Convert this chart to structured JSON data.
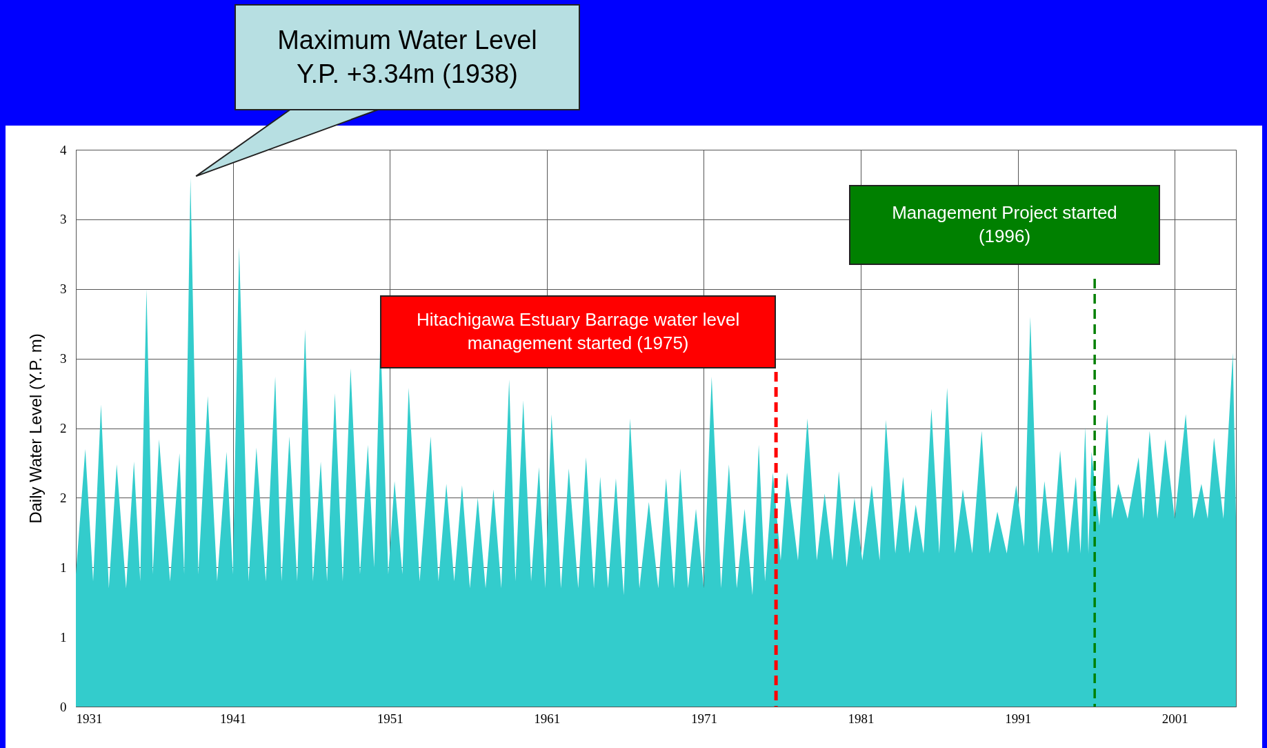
{
  "chart_data": {
    "type": "area",
    "ylabel": "Daily Water Level (Y.P. m)",
    "color": "#33cccc",
    "grid": true,
    "xlim": [
      1931,
      2004.9
    ],
    "xticks": [
      1931,
      1941,
      1951,
      1961,
      1971,
      1981,
      1991,
      2001
    ],
    "ylim": [
      0,
      4
    ],
    "yticks": [
      0,
      {
        "value": 0.5,
        "label": "1"
      },
      1,
      {
        "value": 1.5,
        "label": "2"
      },
      2,
      {
        "value": 2.5,
        "label": "3"
      },
      3,
      {
        "value": 3.5,
        "label": "3"
      },
      4
    ],
    "x": [
      1931.0,
      1931.6,
      1932.1,
      1932.6,
      1933.1,
      1933.6,
      1934.2,
      1934.7,
      1935.1,
      1935.5,
      1935.9,
      1936.3,
      1937.0,
      1937.6,
      1937.9,
      1938.3,
      1938.8,
      1939.4,
      1940.0,
      1940.6,
      1941.0,
      1941.4,
      1942.0,
      1942.5,
      1943.1,
      1943.7,
      1944.1,
      1944.6,
      1945.1,
      1945.6,
      1946.1,
      1946.6,
      1947.0,
      1947.5,
      1948.0,
      1948.5,
      1949.1,
      1949.6,
      1950.0,
      1950.4,
      1950.9,
      1951.3,
      1951.8,
      1952.2,
      1952.9,
      1953.6,
      1954.1,
      1954.6,
      1955.1,
      1955.6,
      1956.1,
      1956.6,
      1957.1,
      1957.6,
      1958.1,
      1958.6,
      1959.0,
      1959.5,
      1960.0,
      1960.5,
      1960.9,
      1961.3,
      1961.9,
      1962.4,
      1963.0,
      1963.5,
      1964.0,
      1964.4,
      1964.9,
      1965.4,
      1965.9,
      1966.3,
      1966.9,
      1967.5,
      1968.1,
      1968.6,
      1969.1,
      1969.5,
      1970.0,
      1970.5,
      1971.0,
      1971.5,
      1972.1,
      1972.6,
      1973.1,
      1973.6,
      1974.1,
      1974.5,
      1974.9,
      1975.4,
      1975.9,
      1976.3,
      1977.0,
      1977.6,
      1978.2,
      1978.7,
      1979.2,
      1979.6,
      1980.1,
      1980.6,
      1981.1,
      1981.7,
      1982.2,
      1982.6,
      1983.2,
      1983.7,
      1984.1,
      1984.5,
      1985.0,
      1985.5,
      1986.0,
      1986.5,
      1987.0,
      1987.5,
      1988.1,
      1988.7,
      1989.2,
      1989.7,
      1990.3,
      1990.9,
      1991.4,
      1991.8,
      1992.3,
      1992.7,
      1993.2,
      1993.7,
      1994.2,
      1994.7,
      1995.0,
      1995.3,
      1995.5,
      1995.7,
      1996.2,
      1996.7,
      1997.0,
      1997.4,
      1998.0,
      1998.7,
      1999.0,
      1999.4,
      1999.9,
      2000.4,
      2001.0,
      2001.7,
      2002.2,
      2002.7,
      2003.1,
      2003.5,
      2004.1,
      2004.7,
      2004.9
    ],
    "values": [
      0.95,
      1.85,
      0.9,
      2.17,
      0.85,
      1.74,
      0.85,
      1.76,
      0.9,
      3.0,
      0.95,
      1.92,
      0.9,
      1.82,
      0.95,
      3.8,
      0.95,
      2.23,
      0.9,
      1.83,
      0.95,
      3.3,
      0.9,
      1.86,
      0.9,
      2.37,
      0.9,
      1.94,
      0.9,
      2.71,
      0.9,
      1.76,
      0.9,
      2.25,
      0.9,
      2.43,
      0.95,
      1.88,
      1.0,
      2.66,
      0.95,
      1.62,
      0.95,
      2.29,
      0.9,
      1.94,
      0.9,
      1.6,
      0.9,
      1.59,
      0.85,
      1.5,
      0.85,
      1.56,
      0.85,
      2.35,
      0.9,
      2.2,
      0.9,
      1.72,
      0.85,
      2.1,
      0.85,
      1.71,
      0.85,
      1.79,
      0.85,
      1.65,
      0.85,
      1.64,
      0.8,
      2.07,
      0.85,
      1.47,
      0.85,
      1.64,
      0.85,
      1.71,
      0.85,
      1.42,
      0.85,
      2.37,
      0.85,
      1.74,
      0.85,
      1.42,
      0.8,
      1.88,
      0.9,
      1.68,
      1.05,
      1.68,
      1.05,
      2.07,
      1.05,
      1.53,
      1.05,
      1.69,
      1.0,
      1.5,
      1.05,
      1.59,
      1.05,
      2.06,
      1.1,
      1.65,
      1.1,
      1.45,
      1.1,
      2.14,
      1.1,
      2.29,
      1.1,
      1.56,
      1.1,
      1.98,
      1.1,
      1.4,
      1.1,
      1.59,
      1.15,
      2.8,
      1.1,
      1.62,
      1.1,
      1.84,
      1.1,
      1.65,
      1.1,
      2.01,
      1.1,
      1.83,
      1.3,
      2.1,
      1.35,
      1.6,
      1.35,
      1.79,
      1.35,
      1.98,
      1.35,
      1.92,
      1.35,
      2.1,
      1.35,
      1.6,
      1.35,
      1.93,
      1.35,
      2.54,
      1.36
    ],
    "ref_lines": [
      {
        "axis": "x",
        "value": 1975.6,
        "label": "Hitachigawa Estuary Barrage water level management started (1975)",
        "color": "#ff0000",
        "line_style": "dashed"
      },
      {
        "axis": "x",
        "value": 1995.9,
        "label": "Management Project started (1996)",
        "color": "#008000",
        "line_style": "dashed"
      }
    ],
    "annotations": [
      {
        "text": "Maximum Water Level\nY.P. +3.34m (1938)",
        "x": 1938.3,
        "y": 3.8
      }
    ]
  }
}
